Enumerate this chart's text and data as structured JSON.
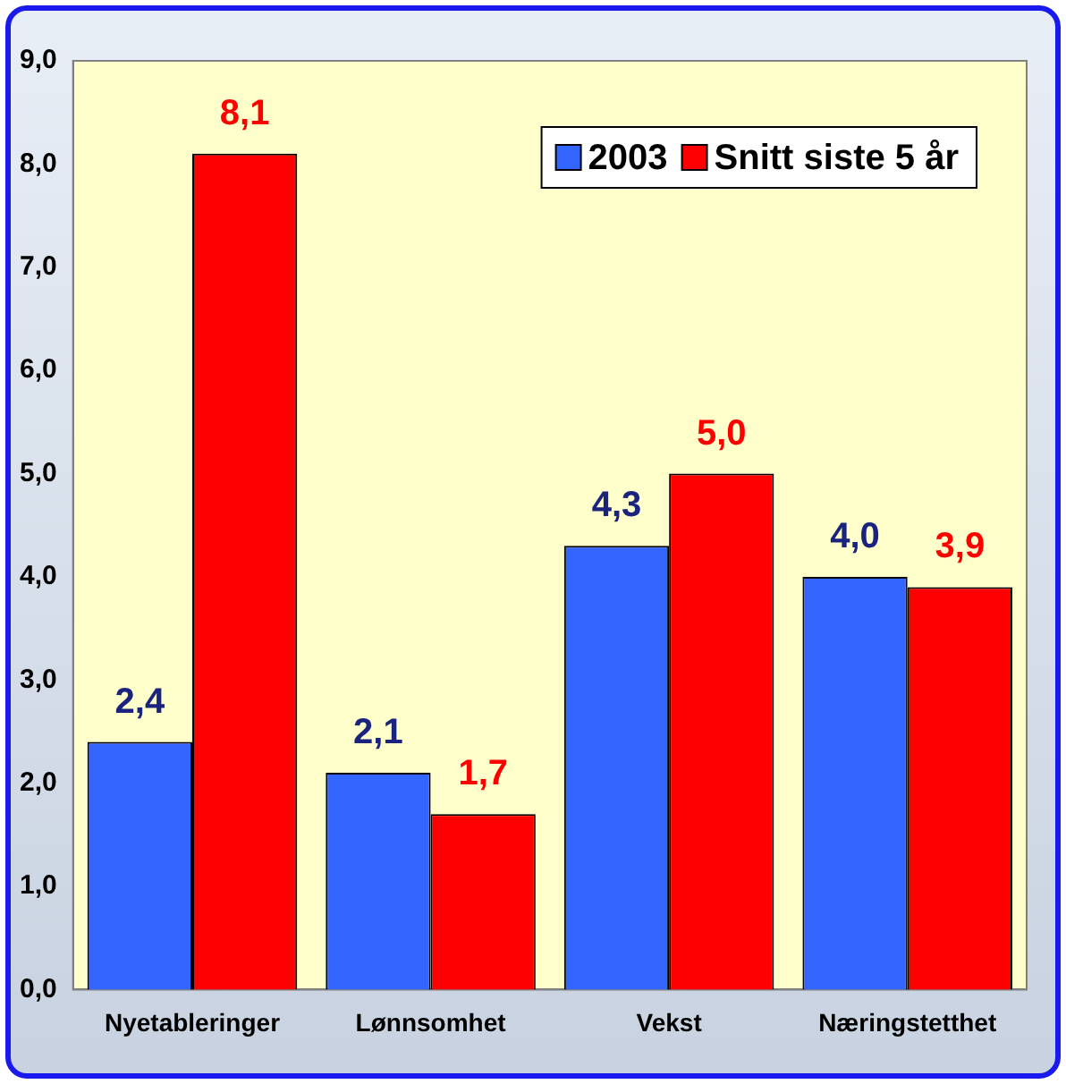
{
  "chart_data": {
    "type": "bar",
    "categories": [
      "Nyetableringer",
      "Lønnsomhet",
      "Vekst",
      "Næringstetthet"
    ],
    "series": [
      {
        "name": "2003",
        "color": "#3366ff",
        "values": [
          2.4,
          2.1,
          4.3,
          4.0
        ],
        "value_labels": [
          "2,4",
          "2,1",
          "4,3",
          "4,0"
        ]
      },
      {
        "name": "Snitt siste 5 år",
        "color": "#ff0000",
        "values": [
          8.1,
          1.7,
          5.0,
          3.9
        ],
        "value_labels": [
          "8,1",
          "1,7",
          "5,0",
          "3,9"
        ]
      }
    ],
    "ylim": [
      0,
      9
    ],
    "yticks": [
      {
        "value": 0,
        "label": "0,0"
      },
      {
        "value": 1,
        "label": "1,0"
      },
      {
        "value": 2,
        "label": "2,0"
      },
      {
        "value": 3,
        "label": "3,0"
      },
      {
        "value": 4,
        "label": "4,0"
      },
      {
        "value": 5,
        "label": "5,0"
      },
      {
        "value": 6,
        "label": "6,0"
      },
      {
        "value": 7,
        "label": "7,0"
      },
      {
        "value": 8,
        "label": "8,0"
      },
      {
        "value": 9,
        "label": "9,0"
      }
    ],
    "grid": false,
    "legend": "top right"
  }
}
